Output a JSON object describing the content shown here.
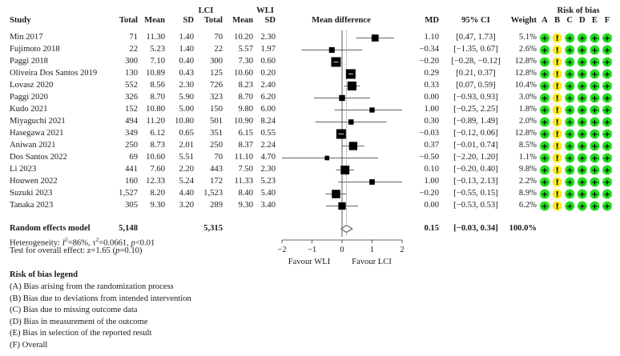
{
  "headers": {
    "study": "Study",
    "group_lci": "LCI",
    "group_wli": "WLI",
    "total": "Total",
    "mean": "Mean",
    "sd": "SD",
    "mean_difference": "Mean difference",
    "md": "MD",
    "ci": "95% CI",
    "weight": "Weight",
    "risk_of_bias": "Risk of bias",
    "rob_letters": [
      "A",
      "B",
      "C",
      "D",
      "E",
      "F"
    ]
  },
  "studies": [
    {
      "name": "Min 2017",
      "lci_total": "71",
      "lci_mean": "11.30",
      "lci_sd": "1.40",
      "wli_total": "70",
      "wli_mean": "10.20",
      "wli_sd": "2.30",
      "md": "1.10",
      "ci": "[0.47, 1.73]",
      "weight": "5.1%"
    },
    {
      "name": "Fujimoto 2018",
      "lci_total": "22",
      "lci_mean": "5.23",
      "lci_sd": "1.40",
      "wli_total": "22",
      "wli_mean": "5.57",
      "wli_sd": "1.97",
      "md": "−0.34",
      "ci": "[−1.35, 0.67]",
      "weight": "2.6%"
    },
    {
      "name": "Paggi 2018",
      "lci_total": "300",
      "lci_mean": "7.10",
      "lci_sd": "0.40",
      "wli_total": "300",
      "wli_mean": "7.30",
      "wli_sd": "0.60",
      "md": "−0.20",
      "ci": "[−0.28, −0.12]",
      "weight": "12.8%"
    },
    {
      "name": "Oliveira Dos Santos 2019",
      "lci_total": "130",
      "lci_mean": "10.89",
      "lci_sd": "0.43",
      "wli_total": "125",
      "wli_mean": "10.60",
      "wli_sd": "0.20",
      "md": "0.29",
      "ci": "[0.21, 0.37]",
      "weight": "12.8%"
    },
    {
      "name": "Lovasz 2020",
      "lci_total": "552",
      "lci_mean": "8.56",
      "lci_sd": "2.30",
      "wli_total": "726",
      "wli_mean": "8.23",
      "wli_sd": "2.40",
      "md": "0.33",
      "ci": "[0.07, 0.59]",
      "weight": "10.4%"
    },
    {
      "name": "Paggi 2020",
      "lci_total": "326",
      "lci_mean": "8.70",
      "lci_sd": "5.90",
      "wli_total": "323",
      "wli_mean": "8.70",
      "wli_sd": "6.20",
      "md": "0.00",
      "ci": "[−0.93, 0.93]",
      "weight": "3.0%"
    },
    {
      "name": "Kudo 2021",
      "lci_total": "152",
      "lci_mean": "10.80",
      "lci_sd": "5.00",
      "wli_total": "150",
      "wli_mean": "9.80",
      "wli_sd": "6.00",
      "md": "1.00",
      "ci": "[−0.25, 2.25]",
      "weight": "1.8%"
    },
    {
      "name": "Miyaguchi 2021",
      "lci_total": "494",
      "lci_mean": "11.20",
      "lci_sd": "10.80",
      "wli_total": "501",
      "wli_mean": "10.90",
      "wli_sd": "8.24",
      "md": "0.30",
      "ci": "[−0.89, 1.49]",
      "weight": "2.0%"
    },
    {
      "name": "Hasegawa 2021",
      "lci_total": "349",
      "lci_mean": "6.12",
      "lci_sd": "0.65",
      "wli_total": "351",
      "wli_mean": "6.15",
      "wli_sd": "0.55",
      "md": "−0.03",
      "ci": "[−0.12, 0.06]",
      "weight": "12.8%"
    },
    {
      "name": "Aniwan 2021",
      "lci_total": "250",
      "lci_mean": "8.73",
      "lci_sd": "2.01",
      "wli_total": "250",
      "wli_mean": "8.37",
      "wli_sd": "2.24",
      "md": "0.37",
      "ci": "[−0.01, 0.74]",
      "weight": "8.5%"
    },
    {
      "name": "Dos Santos 2022",
      "lci_total": "69",
      "lci_mean": "10.60",
      "lci_sd": "5.51",
      "wli_total": "70",
      "wli_mean": "11.10",
      "wli_sd": "4.70",
      "md": "−0.50",
      "ci": "[−2.20, 1.20]",
      "weight": "1.1%"
    },
    {
      "name": "Li 2023",
      "lci_total": "441",
      "lci_mean": "7.60",
      "lci_sd": "2.20",
      "wli_total": "443",
      "wli_mean": "7.50",
      "wli_sd": "2.30",
      "md": "0.10",
      "ci": "[−0.20, 0.40]",
      "weight": "9.8%"
    },
    {
      "name": "Houwen 2022",
      "lci_total": "160",
      "lci_mean": "12.33",
      "lci_sd": "5.24",
      "wli_total": "172",
      "wli_mean": "11.33",
      "wli_sd": "5.23",
      "md": "1.00",
      "ci": "[−0.13, 2.13]",
      "weight": "2.2%"
    },
    {
      "name": "Suzuki 2023",
      "lci_total": "1,527",
      "lci_mean": "8.20",
      "lci_sd": "4.40",
      "wli_total": "1,523",
      "wli_mean": "8.40",
      "wli_sd": "5.40",
      "md": "−0.20",
      "ci": "[−0.55, 0.15]",
      "weight": "8.9%"
    },
    {
      "name": "Tanaka 2023",
      "lci_total": "305",
      "lci_mean": "9.30",
      "lci_sd": "3.20",
      "wli_total": "289",
      "wli_mean": "9.30",
      "wli_sd": "3.40",
      "md": "0.00",
      "ci": "[−0.53, 0.53]",
      "weight": "6.2%"
    }
  ],
  "pooled": {
    "label": "Random effects model",
    "lci_total": "5,148",
    "wli_total": "5,315",
    "md": "0.15",
    "ci": "[−0.03, 0.34]",
    "weight": "100.0%"
  },
  "heterogeneity": {
    "prefix": "Heterogeneity: ",
    "i2_symbol": "I",
    "i2_sup": "2",
    "i2_value": "=86%, ",
    "tau_symbol": "τ",
    "tau_sup": "2",
    "tau_value": "=0.0661, ",
    "p_symbol": "p",
    "p_value": "<0.01"
  },
  "overall_effect": {
    "prefix": "Test for overall effect: z=1.65 (",
    "p_symbol": "p",
    "p_value": "=0.10)"
  },
  "axis": {
    "ticks": [
      -2,
      -1,
      0,
      1,
      2
    ],
    "tick_labels": [
      "−2",
      "−1",
      "0",
      "1",
      "2"
    ],
    "favour_left": "Favour WLI",
    "favour_right": "Favour LCI"
  },
  "risk_of_bias": {
    "symbols": [
      "+",
      "!",
      "+",
      "+",
      "+",
      "+"
    ],
    "levels": [
      "low",
      "some-concerns",
      "low",
      "low",
      "low",
      "low"
    ],
    "colors": {
      "low": "#22dd22",
      "some-concerns": "#f5ec1c"
    }
  },
  "legend": {
    "title": "Risk of bias legend",
    "items": [
      "(A) Bias arising from the randomization process",
      "(B) Bias due to deviations from intended intervention",
      "(C) Bias due to missing outcome data",
      "(D) Bias in measurement of the outcome",
      "(E) Bias in selection of the reported result",
      "(F) Overall"
    ]
  },
  "chart_data": {
    "type": "forest",
    "xlim": [
      -2,
      2
    ],
    "ticks": [
      -2,
      -1,
      0,
      1,
      2
    ],
    "reference_line": 0,
    "studies": [
      {
        "name": "Min 2017",
        "md": 1.1,
        "ci": [
          0.47,
          1.73
        ],
        "weight": 5.1
      },
      {
        "name": "Fujimoto 2018",
        "md": -0.34,
        "ci": [
          -1.35,
          0.67
        ],
        "weight": 2.6
      },
      {
        "name": "Paggi 2018",
        "md": -0.2,
        "ci": [
          -0.28,
          -0.12
        ],
        "weight": 12.8
      },
      {
        "name": "Oliveira Dos Santos 2019",
        "md": 0.29,
        "ci": [
          0.21,
          0.37
        ],
        "weight": 12.8
      },
      {
        "name": "Lovasz 2020",
        "md": 0.33,
        "ci": [
          0.07,
          0.59
        ],
        "weight": 10.4
      },
      {
        "name": "Paggi 2020",
        "md": 0.0,
        "ci": [
          -0.93,
          0.93
        ],
        "weight": 3.0
      },
      {
        "name": "Kudo 2021",
        "md": 1.0,
        "ci": [
          -0.25,
          2.25
        ],
        "weight": 1.8
      },
      {
        "name": "Miyaguchi 2021",
        "md": 0.3,
        "ci": [
          -0.89,
          1.49
        ],
        "weight": 2.0
      },
      {
        "name": "Hasegawa 2021",
        "md": -0.03,
        "ci": [
          -0.12,
          0.06
        ],
        "weight": 12.8
      },
      {
        "name": "Aniwan 2021",
        "md": 0.37,
        "ci": [
          -0.01,
          0.74
        ],
        "weight": 8.5
      },
      {
        "name": "Dos Santos 2022",
        "md": -0.5,
        "ci": [
          -2.2,
          1.2
        ],
        "weight": 1.1
      },
      {
        "name": "Li 2023",
        "md": 0.1,
        "ci": [
          -0.2,
          0.4
        ],
        "weight": 9.8
      },
      {
        "name": "Houwen 2022",
        "md": 1.0,
        "ci": [
          -0.13,
          2.13
        ],
        "weight": 2.2
      },
      {
        "name": "Suzuki 2023",
        "md": -0.2,
        "ci": [
          -0.55,
          0.15
        ],
        "weight": 8.9
      },
      {
        "name": "Tanaka 2023",
        "md": 0.0,
        "ci": [
          -0.53,
          0.53
        ],
        "weight": 6.2
      }
    ],
    "pooled": {
      "md": 0.15,
      "ci": [
        -0.03,
        0.34
      ]
    }
  }
}
